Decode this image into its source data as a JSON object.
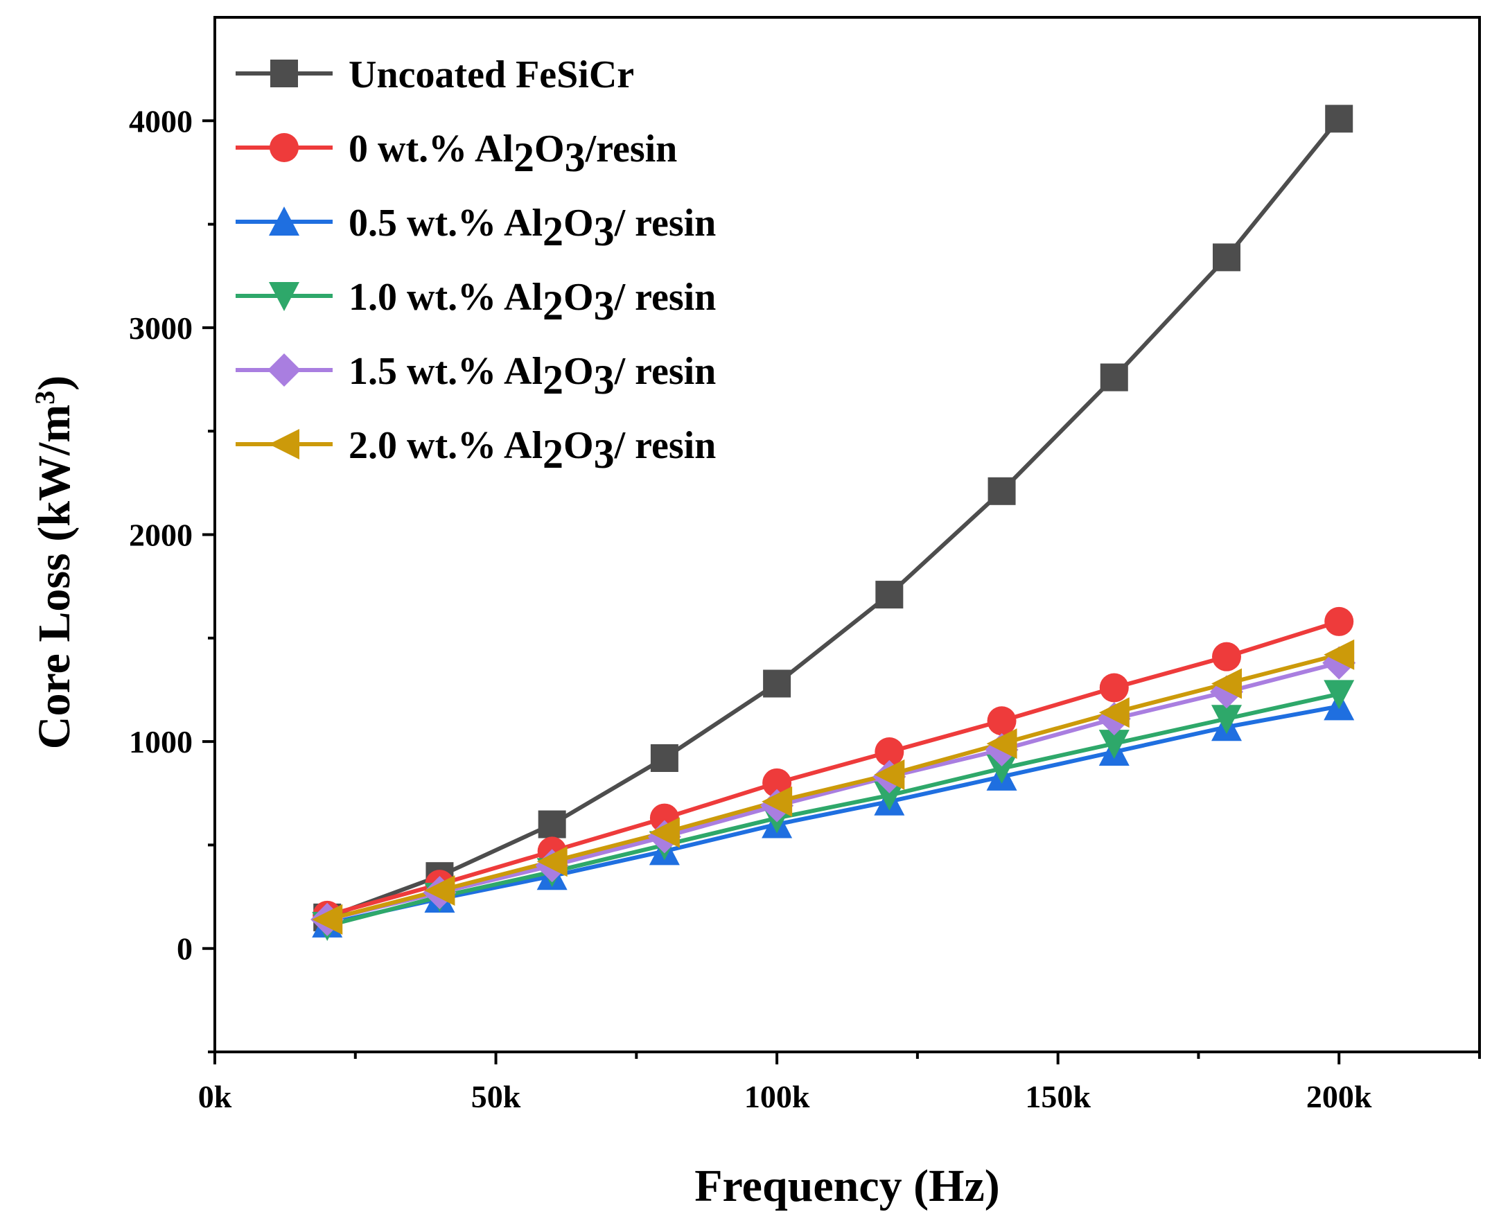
{
  "chart_data": {
    "type": "line",
    "xlabel": "Frequency (Hz)",
    "ylabel": "Core Loss (kW/m",
    "ylabel_superscript": "3",
    "ylabel_close": ")",
    "xlim": [
      0,
      225000
    ],
    "ylim": [
      -500,
      4500
    ],
    "xticks": [
      {
        "value": 0,
        "label": "0k"
      },
      {
        "value": 50000,
        "label": "50k"
      },
      {
        "value": 100000,
        "label": "100k"
      },
      {
        "value": 150000,
        "label": "150k"
      },
      {
        "value": 200000,
        "label": "200k"
      }
    ],
    "xminor": [
      25000,
      75000,
      125000,
      175000,
      225000
    ],
    "yticks": [
      {
        "value": 0,
        "label": "0"
      },
      {
        "value": 1000,
        "label": "1000"
      },
      {
        "value": 2000,
        "label": "2000"
      },
      {
        "value": 3000,
        "label": "3000"
      },
      {
        "value": 4000,
        "label": "4000"
      }
    ],
    "yminor": [
      -500,
      500,
      1500,
      2500,
      3500
    ],
    "legend_position": "top-left",
    "x": [
      20000,
      40000,
      60000,
      80000,
      100000,
      120000,
      140000,
      160000,
      180000,
      200000
    ],
    "series": [
      {
        "name": "Uncoated FeSiCr",
        "parts": [
          {
            "t": "Uncoated FeSiCr"
          }
        ],
        "color": "#4d4d4d",
        "marker": "square",
        "values": [
          150,
          350,
          600,
          920,
          1280,
          1710,
          2210,
          2760,
          3340,
          4010
        ]
      },
      {
        "name": "0 wt.% Al2O3/resin",
        "parts": [
          {
            "t": "0 wt.% Al"
          },
          {
            "t": "2",
            "s": true
          },
          {
            "t": "O"
          },
          {
            "t": "3",
            "s": true
          },
          {
            "t": "/resin"
          }
        ],
        "color": "#ee3b3b",
        "marker": "circle",
        "values": [
          160,
          310,
          470,
          630,
          800,
          950,
          1100,
          1260,
          1410,
          1580
        ]
      },
      {
        "name": "0.5 wt.% Al2O3/ resin",
        "parts": [
          {
            "t": "0.5 wt.% Al"
          },
          {
            "t": "2",
            "s": true
          },
          {
            "t": "O"
          },
          {
            "t": "3",
            "s": true
          },
          {
            "t": "/ resin"
          }
        ],
        "color": "#1f6fe0",
        "marker": "triangle-up",
        "values": [
          120,
          240,
          350,
          470,
          600,
          710,
          830,
          950,
          1070,
          1170
        ]
      },
      {
        "name": "1.0 wt.% Al2O3/ resin",
        "parts": [
          {
            "t": "1.0 wt.% Al"
          },
          {
            "t": "2",
            "s": true
          },
          {
            "t": "O"
          },
          {
            "t": "3",
            "s": true
          },
          {
            "t": "/ resin"
          }
        ],
        "color": "#2ea86a",
        "marker": "triangle-down",
        "values": [
          110,
          250,
          370,
          500,
          630,
          740,
          870,
          990,
          1110,
          1230
        ]
      },
      {
        "name": "1.5 wt.% Al2O3/ resin",
        "parts": [
          {
            "t": "1.5 wt.% Al"
          },
          {
            "t": "2",
            "s": true
          },
          {
            "t": "O"
          },
          {
            "t": "3",
            "s": true
          },
          {
            "t": "/ resin"
          }
        ],
        "color": "#a97ee0",
        "marker": "diamond",
        "values": [
          140,
          270,
          400,
          540,
          690,
          830,
          960,
          1110,
          1240,
          1380
        ]
      },
      {
        "name": "2.0 wt.% Al2O3/ resin",
        "parts": [
          {
            "t": "2.0 wt.% Al"
          },
          {
            "t": "2",
            "s": true
          },
          {
            "t": "O"
          },
          {
            "t": "3",
            "s": true
          },
          {
            "t": "/ resin"
          }
        ],
        "color": "#cc9a0a",
        "marker": "triangle-left",
        "values": [
          140,
          280,
          420,
          560,
          710,
          840,
          990,
          1140,
          1280,
          1420
        ]
      }
    ]
  }
}
